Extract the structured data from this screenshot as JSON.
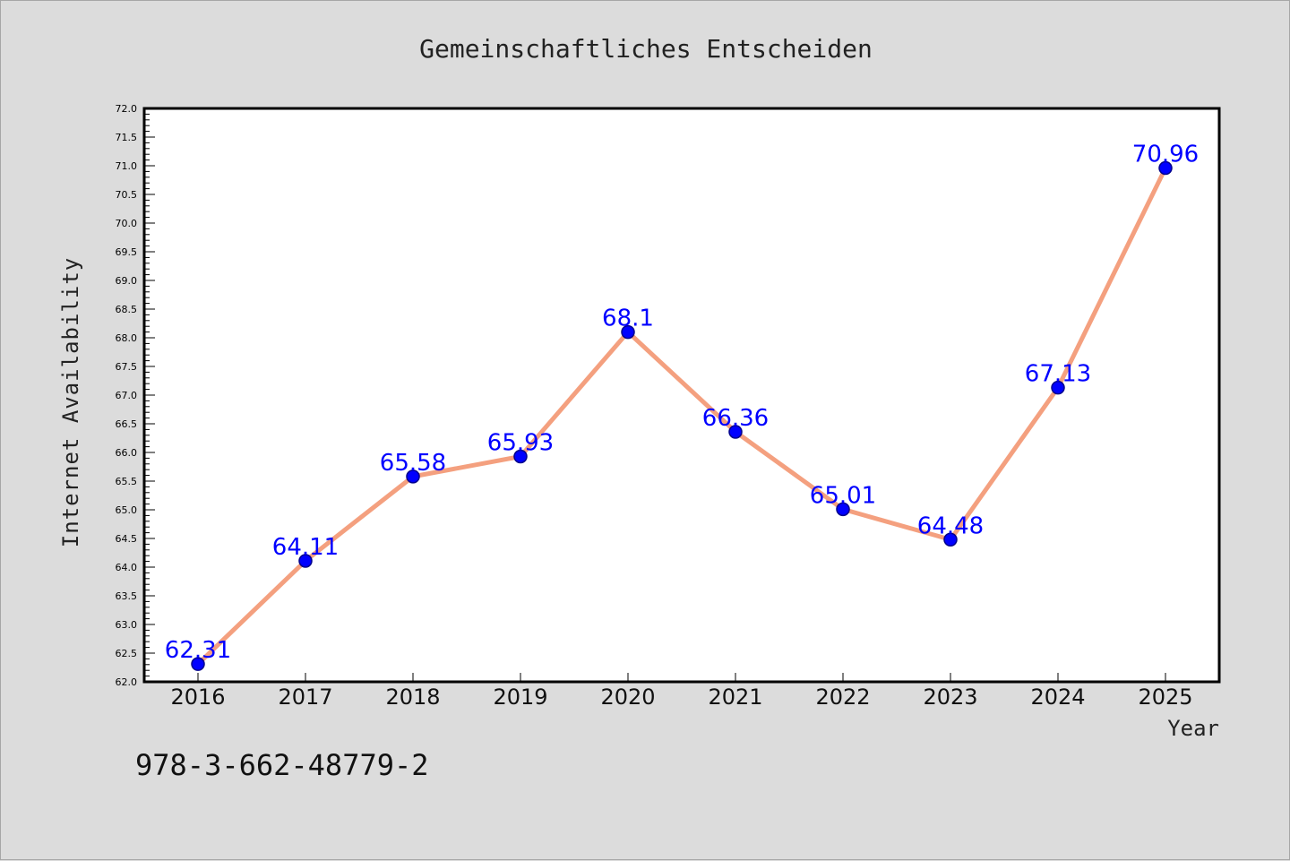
{
  "chart_data": {
    "type": "line",
    "title": "Gemeinschaftliches Entscheiden",
    "xlabel": "Year",
    "ylabel": "Internet Availability",
    "categories": [
      "2016",
      "2017",
      "2018",
      "2019",
      "2020",
      "2021",
      "2022",
      "2023",
      "2024",
      "2025"
    ],
    "series": [
      {
        "values": [
          62.31,
          64.11,
          65.58,
          65.93,
          68.1,
          66.36,
          65.01,
          64.48,
          67.13,
          70.96
        ],
        "labels": [
          "62.31",
          "64.11",
          "65.58",
          "65.93",
          "68.1",
          "66.36",
          "65.01",
          "64.48",
          "67.13",
          "70.96"
        ]
      }
    ],
    "ylim": [
      62.0,
      72.0
    ],
    "yticks": [
      "62.0",
      "62.5",
      "63.0",
      "63.5",
      "64.0",
      "64.5",
      "65.0",
      "65.5",
      "66.0",
      "66.5",
      "67.0",
      "67.5",
      "68.0",
      "68.5",
      "69.0",
      "69.5",
      "70.0",
      "70.5",
      "71.0",
      "71.5",
      "72.0"
    ],
    "grid": false,
    "annotation": "978-3-662-48779-2",
    "colors": {
      "line": "#f4a07f",
      "marker": "#0000ff",
      "marker_edge": "#00008b",
      "data_label": "#0000ff",
      "background": "#dcdcdc",
      "plot_background": "#ffffff"
    }
  }
}
